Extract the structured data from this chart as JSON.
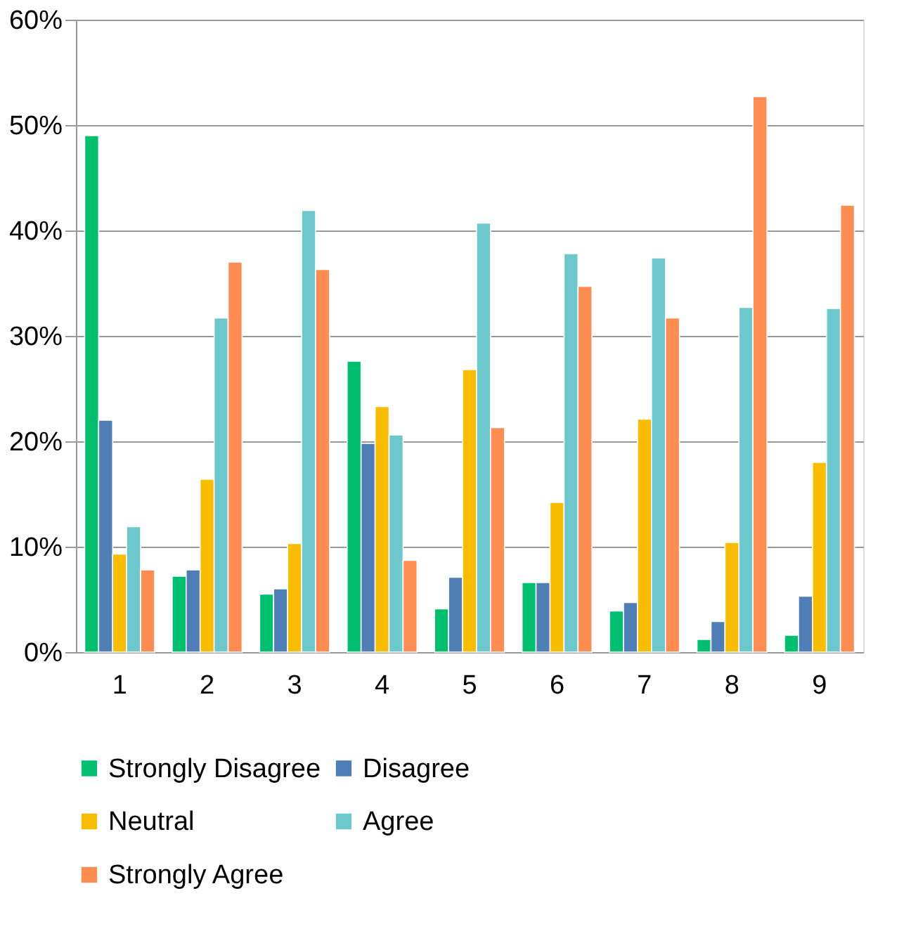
{
  "chart_data": {
    "type": "bar",
    "categories": [
      "1",
      "2",
      "3",
      "4",
      "5",
      "6",
      "7",
      "8",
      "9"
    ],
    "series": [
      {
        "name": "Strongly Disagree",
        "color": "#00bf6f",
        "values": [
          49,
          7.2,
          5.5,
          27.6,
          4.1,
          6.6,
          3.9,
          1.2,
          1.6
        ]
      },
      {
        "name": "Disagree",
        "color": "#4f7db5",
        "values": [
          22,
          7.8,
          6,
          19.8,
          7.1,
          6.6,
          4.7,
          2.9,
          5.3
        ]
      },
      {
        "name": "Neutral",
        "color": "#f8bc00",
        "values": [
          9.3,
          16.4,
          10.3,
          23.3,
          26.8,
          14.2,
          22.1,
          10.4,
          18
        ]
      },
      {
        "name": "Agree",
        "color": "#6cc8cc",
        "values": [
          11.9,
          31.7,
          41.9,
          20.6,
          40.7,
          37.8,
          37.4,
          32.7,
          32.6
        ]
      },
      {
        "name": "Strongly Agree",
        "color": "#ff8c50",
        "values": [
          7.8,
          37,
          36.3,
          8.7,
          21.3,
          34.7,
          31.7,
          52.7,
          42.4
        ]
      }
    ],
    "ylim": [
      0,
      60
    ],
    "yticks": [
      {
        "value": 0,
        "label": "0%"
      },
      {
        "value": 10,
        "label": "10%"
      },
      {
        "value": 20,
        "label": "20%"
      },
      {
        "value": 30,
        "label": "30%"
      },
      {
        "value": 40,
        "label": "40%"
      },
      {
        "value": 50,
        "label": "50%"
      },
      {
        "value": 60,
        "label": "60%"
      }
    ],
    "grid": "y",
    "legend": "bottom"
  }
}
